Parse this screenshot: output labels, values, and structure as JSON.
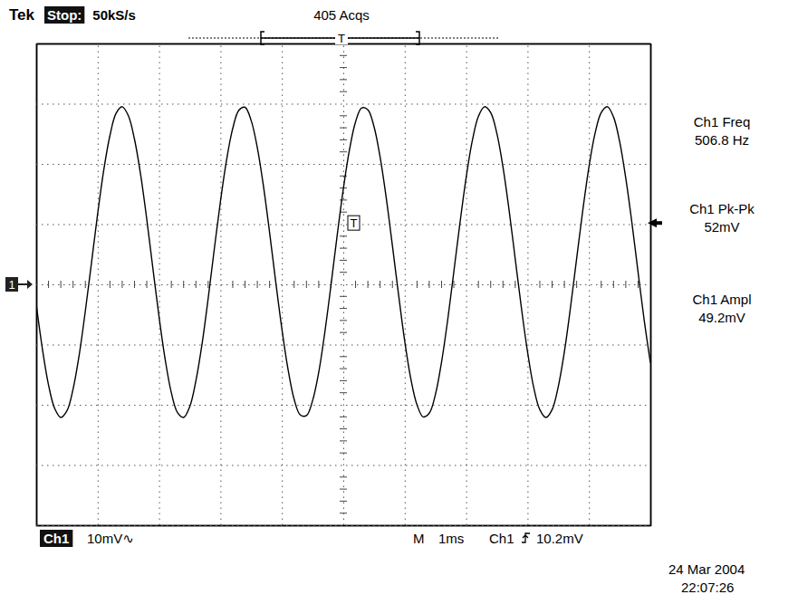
{
  "chart_data": {
    "type": "line",
    "x": [
      -5,
      -4.9,
      -4.8,
      -4.7,
      -4.6,
      -4.5,
      -4.4,
      -4.3,
      -4.2,
      -4.1,
      -4,
      -3.9,
      -3.8,
      -3.7,
      -3.6,
      -3.5,
      -3.4,
      -3.3,
      -3.2,
      -3.1,
      -3,
      -2.9,
      -2.8,
      -2.7,
      -2.6,
      -2.5,
      -2.4,
      -2.3,
      -2.2,
      -2.1,
      -2,
      -1.9,
      -1.8,
      -1.7,
      -1.6,
      -1.5,
      -1.4,
      -1.3,
      -1.2,
      -1.1,
      -1,
      -0.9,
      -0.8,
      -0.7,
      -0.6,
      -0.5,
      -0.4,
      -0.3,
      -0.2,
      -0.1,
      0,
      0.1,
      0.2,
      0.3,
      0.4,
      0.5,
      0.6,
      0.7,
      0.8,
      0.9,
      1,
      1.1,
      1.2,
      1.3,
      1.4,
      1.5,
      1.6,
      1.7,
      1.8,
      1.9,
      2,
      2.1,
      2.2,
      2.3,
      2.4,
      2.5,
      2.6,
      2.7,
      2.8,
      2.9,
      3,
      3.1,
      3.2,
      3.3,
      3.4,
      3.5,
      3.6,
      3.7,
      3.8,
      3.9,
      4,
      4.1,
      4.2,
      4.3,
      4.4,
      4.5,
      4.6,
      4.7,
      4.8,
      4.9,
      5
    ],
    "series": [
      {
        "color": "#000000",
        "values": [
          -3.3,
          -10.7,
          -16.7,
          -20.6,
          -22.1,
          -21.0,
          -17.4,
          -11.7,
          -4.4,
          3.6,
          11.7,
          19.0,
          24.7,
          28.4,
          29.5,
          28.0,
          24.1,
          18.2,
          10.8,
          2.6,
          -5.4,
          -12.5,
          -18.0,
          -21.3,
          -22.1,
          -20.3,
          -16.0,
          -9.9,
          -2.3,
          5.9,
          13.8,
          20.7,
          25.9,
          28.9,
          29.4,
          27.2,
          22.7,
          16.3,
          8.6,
          0.4,
          -7.4,
          -14.1,
          -19.1,
          -21.7,
          -21.8,
          -19.3,
          -14.6,
          -7.9,
          -0.1,
          8.1,
          15.8,
          22.3,
          27.0,
          29.3,
          29.0,
          26.2,
          21.1,
          14.3,
          6.4,
          -1.7,
          -9.4,
          -15.7,
          -20.0,
          -22.0,
          -21.4,
          -18.3,
          -12.9,
          -5.9,
          2.1,
          10.2,
          17.7,
          23.8,
          27.9,
          29.5,
          28.5,
          25.1,
          19.5,
          12.3,
          4.2,
          -3.9,
          -11.2,
          -17.1,
          -20.8,
          -22.1,
          -20.8,
          -17.0,
          -11.2,
          -3.8,
          4.3,
          12.3,
          19.5,
          25.1,
          28.5,
          29.5,
          27.8,
          23.7,
          17.6,
          10.2,
          2.0,
          -6.0,
          -13.0
        ]
      }
    ],
    "xlim": [
      -5,
      5
    ],
    "xticks": [
      -5,
      -4,
      -3,
      -2,
      -1,
      0,
      1,
      2,
      3,
      4,
      5
    ],
    "ylim": [
      -40,
      40
    ],
    "yticks": [
      -40,
      -30,
      -20,
      -10,
      0,
      10,
      20,
      30,
      40
    ],
    "grid": true,
    "tick_labels": false,
    "trigger_level": 10.2
  },
  "header": {
    "brand": "Tek",
    "state": "Stop:",
    "sample_rate": "50kS/s",
    "acquisitions": "405 Acqs"
  },
  "measurements": [
    {
      "label": "Ch1 Freq",
      "value": "506.8 Hz"
    },
    {
      "label": "Ch1 Pk-Pk",
      "value": "52mV"
    },
    {
      "label": "Ch1 Ampl",
      "value": "49.2mV"
    }
  ],
  "footer": {
    "channel": "Ch1",
    "scale": "10mV∿",
    "timebase_label": "M",
    "timebase": "1ms",
    "trigger_source": "Ch1",
    "trigger_level": "10.2mV"
  },
  "markers": {
    "ground": "1",
    "trigger": "T"
  },
  "timestamp": {
    "date": "24 Mar 2004",
    "time": "22:07:26"
  }
}
